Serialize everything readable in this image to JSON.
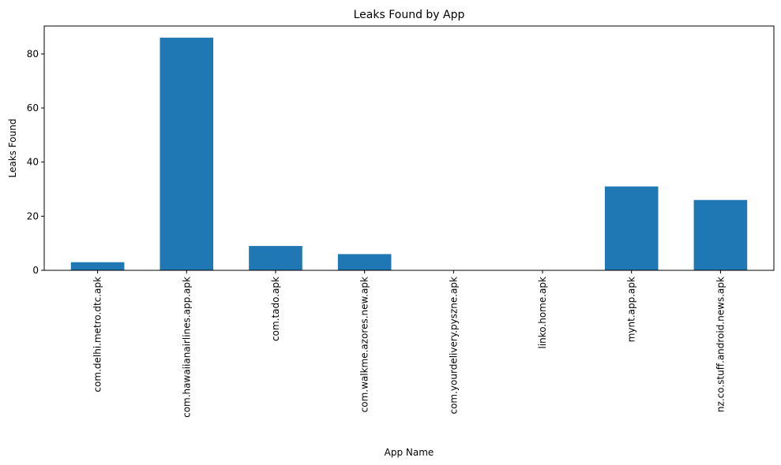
{
  "chart_data": {
    "type": "bar",
    "title": "Leaks Found by App",
    "xlabel": "App Name",
    "ylabel": "Leaks Found",
    "categories": [
      "com.delhi.metro.dtc.apk",
      "com.hawaiianairlines.app.apk",
      "com.tado.apk",
      "com.walkme.azores.new.apk",
      "com.yourdelivery.pyszne.apk",
      "linko.home.apk",
      "mynt.app.apk",
      "nz.co.stuff.android.news.apk"
    ],
    "values": [
      3,
      86,
      9,
      6,
      0,
      0,
      31,
      26
    ],
    "ylim": [
      0,
      90.3
    ],
    "yticks": [
      0,
      20,
      40,
      60,
      80
    ],
    "ytick_labels": [
      "0",
      "20",
      "40",
      "60",
      "80"
    ],
    "grid": false,
    "bar_color": "#1f77b4"
  }
}
